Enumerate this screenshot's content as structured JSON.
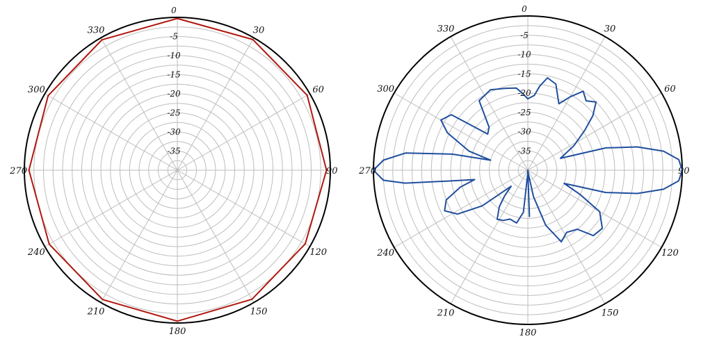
{
  "chart_data": [
    {
      "type": "polar",
      "title": "",
      "angle_unit": "degrees",
      "angle_zero": "top",
      "angle_direction": "clockwise",
      "r_range": [
        -40,
        0
      ],
      "r_ticks": [
        0,
        -5,
        -10,
        -15,
        -20,
        -25,
        -30,
        -35
      ],
      "r_tick_labels": [
        "0",
        "-5",
        "-10",
        "-15",
        "-20",
        "-25",
        "-30",
        "-35"
      ],
      "angle_ticks": [
        0,
        30,
        60,
        90,
        120,
        150,
        180,
        210,
        240,
        270,
        300,
        330
      ],
      "angle_tick_labels": [
        "0",
        "30",
        "60",
        "90",
        "120",
        "150",
        "180",
        "210",
        "240",
        "270",
        "300",
        "330"
      ],
      "grid": true,
      "series": [
        {
          "color": "#b0170f",
          "theta": [
            0,
            30,
            60,
            90,
            120,
            150,
            180,
            210,
            240,
            270,
            300,
            330,
            360
          ],
          "r": [
            -0.3,
            -0.5,
            -0.8,
            -1.0,
            -1.4,
            -1.0,
            -0.5,
            -0.9,
            -1.3,
            -1.2,
            -1.0,
            -0.6,
            -0.3
          ]
        }
      ]
    },
    {
      "type": "polar",
      "title": "",
      "angle_unit": "degrees",
      "angle_zero": "top",
      "angle_direction": "clockwise",
      "r_range": [
        -40,
        0
      ],
      "r_ticks": [
        0,
        -5,
        -10,
        -15,
        -20,
        -25,
        -30,
        -35
      ],
      "r_tick_labels": [
        "0",
        "-5",
        "-10",
        "-15",
        "-20",
        "-25",
        "-30",
        "-35"
      ],
      "angle_ticks": [
        0,
        30,
        60,
        90,
        120,
        150,
        180,
        210,
        240,
        270,
        300,
        330
      ],
      "angle_tick_labels": [
        "0",
        "30",
        "60",
        "90",
        "120",
        "150",
        "180",
        "210",
        "240",
        "270",
        "300",
        "330"
      ],
      "grid": true,
      "series": [
        {
          "color": "#1f4e9e",
          "theta": [
            0,
            5,
            8,
            12,
            18,
            25,
            30,
            35,
            40,
            45,
            50,
            55,
            62,
            70,
            74,
            78,
            82,
            86,
            90,
            94,
            98,
            102,
            106,
            110,
            115,
            120,
            128,
            135,
            140,
            148,
            155,
            162,
            168,
            172,
            176,
            178,
            180,
            182,
            186,
            192,
            200,
            206,
            212,
            218,
            222,
            226,
            232,
            238,
            244,
            250,
            256,
            260,
            262,
            264,
            266,
            270,
            274,
            278,
            282,
            285,
            288,
            295,
            300,
            306,
            312,
            318,
            325,
            335,
            345,
            352,
            356,
            360
          ],
          "r": [
            -21.5,
            -20.5,
            -18,
            -15.5,
            -16.5,
            -21,
            -18,
            -15,
            -16.5,
            -15,
            -18,
            -22,
            -26.5,
            -31,
            -19,
            -11,
            -4.5,
            -0.8,
            0,
            -0.8,
            -4.5,
            -11,
            -19,
            -30,
            -25,
            -18.5,
            -15.5,
            -16,
            -20,
            -21,
            -19.5,
            -25,
            -33,
            -39,
            -40,
            -28,
            -40,
            -39,
            -29,
            -26,
            -26.5,
            -25.5,
            -25,
            -28,
            -31,
            -34,
            -25,
            -18.5,
            -16,
            -17.5,
            -22,
            -26,
            -20,
            -8,
            -2.5,
            0,
            -2.5,
            -8,
            -20,
            -30,
            -24,
            -17,
            -14,
            -15.5,
            -26,
            -25,
            -18,
            -17,
            -18,
            -18.5,
            -20,
            -21.5
          ]
        }
      ]
    }
  ]
}
